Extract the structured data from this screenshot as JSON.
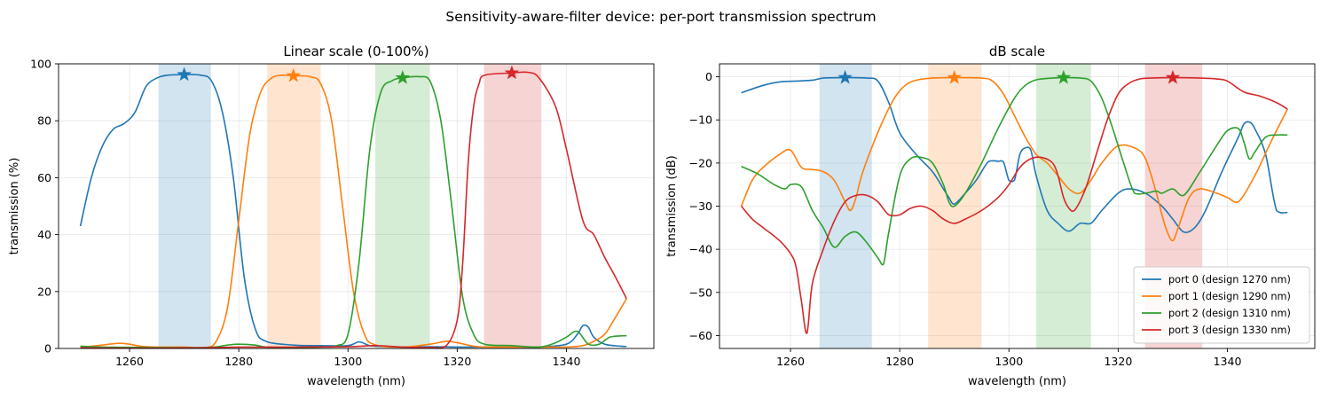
{
  "figure": {
    "suptitle": "Sensitivity-aware-filter device: per-port transmission spectrum"
  },
  "chart_data": [
    {
      "type": "line",
      "title": "Linear scale (0-100%)",
      "xlabel": "wavelength (nm)",
      "ylabel": "transmission (%)",
      "xlim": [
        1247,
        1356
      ],
      "ylim": [
        0,
        100
      ],
      "xticks": [
        1260,
        1280,
        1300,
        1320,
        1340
      ],
      "yticks": [
        0,
        20,
        40,
        60,
        80,
        100
      ],
      "grid": true,
      "bands": [
        {
          "x0": 1265.3,
          "x1": 1274.9,
          "color": "#1f77b4"
        },
        {
          "x0": 1285.2,
          "x1": 1295.0,
          "color": "#ff7f0e"
        },
        {
          "x0": 1305.0,
          "x1": 1315.0,
          "color": "#2ca02c"
        },
        {
          "x0": 1324.9,
          "x1": 1335.4,
          "color": "#d62728"
        }
      ],
      "markers": [
        {
          "x": 1270,
          "y": 96.2,
          "color": "#1f77b4"
        },
        {
          "x": 1290,
          "y": 95.8,
          "color": "#ff7f0e"
        },
        {
          "x": 1310,
          "y": 95.1,
          "color": "#2ca02c"
        },
        {
          "x": 1330,
          "y": 96.8,
          "color": "#d62728"
        }
      ],
      "series": [
        {
          "color": "#1f77b4",
          "x": [
            1251,
            1253,
            1255,
            1257,
            1259,
            1261,
            1263,
            1265,
            1267,
            1270,
            1273,
            1275,
            1277,
            1279,
            1281,
            1283,
            1285,
            1290,
            1295,
            1300,
            1302,
            1304,
            1306,
            1310,
            1315,
            1320,
            1325,
            1330,
            1335,
            1340,
            1342,
            1343,
            1344,
            1345,
            1347,
            1350,
            1351
          ],
          "y": [
            43,
            60,
            71,
            77,
            79,
            83,
            92,
            95,
            96,
            96.2,
            96,
            94,
            83,
            60,
            25,
            7,
            2.5,
            1.2,
            1.0,
            1.0,
            2.3,
            1.0,
            0.8,
            0.5,
            0.6,
            0.5,
            0.5,
            0.5,
            0.5,
            1.5,
            5,
            8,
            7.5,
            4,
            1.5,
            0.8,
            0.7
          ]
        },
        {
          "color": "#ff7f0e",
          "x": [
            1251,
            1255,
            1258,
            1260,
            1262,
            1265,
            1270,
            1274,
            1276,
            1278,
            1280,
            1282,
            1284,
            1286,
            1288,
            1290,
            1293,
            1295,
            1297,
            1299,
            1301,
            1303,
            1305,
            1310,
            1315,
            1318,
            1320,
            1323,
            1325,
            1330,
            1335,
            1340,
            1343,
            1345,
            1347,
            1349,
            1351
          ],
          "y": [
            0.4,
            1.2,
            1.8,
            1.5,
            0.8,
            0.5,
            0.5,
            0.3,
            3,
            15,
            45,
            75,
            90,
            95,
            96,
            95.8,
            95.5,
            93,
            80,
            50,
            20,
            5,
            1.3,
            0.5,
            1.5,
            2.5,
            2,
            0.8,
            0.5,
            0.5,
            0.5,
            0.5,
            1,
            2.5,
            5,
            11,
            17.5
          ]
        },
        {
          "color": "#2ca02c",
          "x": [
            1251,
            1255,
            1260,
            1265,
            1270,
            1275,
            1278,
            1280,
            1283,
            1285,
            1290,
            1295,
            1298,
            1300,
            1302,
            1304,
            1306,
            1308,
            1310,
            1313,
            1315,
            1317,
            1319,
            1321,
            1323,
            1325,
            1330,
            1335,
            1338,
            1340,
            1342,
            1344,
            1346,
            1348,
            1351
          ],
          "y": [
            0.8,
            0.5,
            0.4,
            0.3,
            0.3,
            0.4,
            1.2,
            1.5,
            1.2,
            0.5,
            0.3,
            0.5,
            1.0,
            5,
            30,
            70,
            90,
            94,
            95.1,
            95.5,
            94,
            80,
            50,
            18,
            5,
            1.5,
            1,
            0.5,
            2,
            4,
            6,
            1.5,
            1.5,
            4,
            4.5
          ]
        },
        {
          "color": "#d62728",
          "x": [
            1251,
            1260,
            1265,
            1270,
            1275,
            1280,
            1290,
            1300,
            1305,
            1310,
            1315,
            1318,
            1320,
            1321,
            1322,
            1323,
            1324,
            1325,
            1330,
            1333,
            1335,
            1338,
            1340,
            1343,
            1345,
            1347,
            1349,
            1351
          ],
          "y": [
            0.2,
            0.1,
            0.1,
            0.2,
            0.3,
            0.5,
            0.5,
            0.6,
            1.0,
            0.5,
            0.3,
            1.0,
            10,
            30,
            65,
            85,
            93,
            96,
            96.8,
            97,
            95,
            85,
            70,
            45,
            40,
            32,
            25,
            17.5
          ]
        }
      ]
    },
    {
      "type": "line",
      "title": "dB scale",
      "xlabel": "wavelength (nm)",
      "ylabel": "transmission (dB)",
      "xlim": [
        1247,
        1356
      ],
      "ylim": [
        -63,
        3
      ],
      "xticks": [
        1260,
        1280,
        1300,
        1320,
        1340
      ],
      "yticks": [
        0,
        -10,
        -20,
        -30,
        -40,
        -50,
        -60
      ],
      "grid": true,
      "legend_position": "lower-right",
      "bands": [
        {
          "x0": 1265.3,
          "x1": 1274.9,
          "color": "#1f77b4"
        },
        {
          "x0": 1285.2,
          "x1": 1295.0,
          "color": "#ff7f0e"
        },
        {
          "x0": 1305.0,
          "x1": 1315.0,
          "color": "#2ca02c"
        },
        {
          "x0": 1324.9,
          "x1": 1335.4,
          "color": "#d62728"
        }
      ],
      "markers": [
        {
          "x": 1270,
          "y": -0.2,
          "color": "#1f77b4"
        },
        {
          "x": 1290,
          "y": -0.2,
          "color": "#ff7f0e"
        },
        {
          "x": 1310,
          "y": -0.2,
          "color": "#2ca02c"
        },
        {
          "x": 1330,
          "y": -0.2,
          "color": "#d62728"
        }
      ],
      "series": [
        {
          "name": "port 0 (design 1270 nm)",
          "color": "#1f77b4",
          "x": [
            1251,
            1255,
            1258,
            1261,
            1264,
            1266,
            1270,
            1274,
            1276,
            1278,
            1280,
            1283,
            1286,
            1288,
            1289,
            1290,
            1292,
            1294,
            1296,
            1297,
            1298,
            1299,
            1300,
            1301,
            1302,
            1303,
            1304,
            1305,
            1307,
            1309,
            1311,
            1313,
            1315,
            1317,
            1320,
            1322,
            1325,
            1328,
            1330,
            1332,
            1334,
            1336,
            1339,
            1342,
            1343,
            1344,
            1345,
            1347,
            1349,
            1351
          ],
          "y": [
            -3.7,
            -2,
            -1.2,
            -1,
            -0.8,
            -0.3,
            -0.2,
            -0.3,
            -1,
            -6,
            -13,
            -18,
            -22,
            -26,
            -28,
            -29.5,
            -27,
            -24,
            -20,
            -19.5,
            -19.6,
            -19.8,
            -24,
            -24,
            -18,
            -16.5,
            -17,
            -23,
            -31,
            -34,
            -35.8,
            -34,
            -34,
            -31,
            -27,
            -26,
            -27,
            -30,
            -33,
            -36,
            -35,
            -31,
            -22,
            -14,
            -11,
            -10.5,
            -12,
            -18,
            -31,
            -31.5
          ]
        },
        {
          "name": "port 1 (design 1290 nm)",
          "color": "#ff7f0e",
          "x": [
            1251,
            1253,
            1255,
            1258,
            1260,
            1262,
            1264,
            1266,
            1268,
            1270,
            1271,
            1272,
            1273,
            1275,
            1277,
            1279,
            1281,
            1283,
            1286,
            1290,
            1295,
            1297,
            1299,
            1301,
            1303,
            1305,
            1307,
            1309,
            1311,
            1313,
            1315,
            1317,
            1320,
            1323,
            1325,
            1327,
            1328,
            1329,
            1330,
            1331,
            1333,
            1335,
            1338,
            1340,
            1342,
            1345,
            1348,
            1351
          ],
          "y": [
            -30,
            -24,
            -21,
            -18,
            -17,
            -21,
            -21.5,
            -22,
            -24,
            -29,
            -31,
            -28,
            -23,
            -16,
            -10,
            -5,
            -2,
            -0.8,
            -0.3,
            -0.2,
            -0.3,
            -1,
            -4,
            -9,
            -14,
            -18,
            -20,
            -23,
            -26,
            -27,
            -24,
            -20,
            -16,
            -16.5,
            -19,
            -27,
            -32,
            -36,
            -38,
            -35,
            -28,
            -26,
            -27,
            -28,
            -29,
            -23,
            -15,
            -7.5
          ]
        },
        {
          "name": "port 2 (design 1310 nm)",
          "color": "#2ca02c",
          "x": [
            1251,
            1254,
            1257,
            1259,
            1260,
            1262,
            1264,
            1266,
            1268,
            1270,
            1272,
            1274,
            1276,
            1277,
            1278,
            1280,
            1282,
            1284,
            1286,
            1288,
            1289,
            1290,
            1292,
            1295,
            1298,
            1301,
            1303,
            1305,
            1308,
            1310,
            1313,
            1315,
            1317,
            1319,
            1321,
            1323,
            1325,
            1327,
            1328,
            1330,
            1332,
            1335,
            1338,
            1340,
            1342,
            1343,
            1344,
            1345,
            1347,
            1349,
            1351
          ],
          "y": [
            -20.8,
            -22.5,
            -25,
            -26,
            -25,
            -25.5,
            -31,
            -35,
            -39.5,
            -37,
            -36,
            -38.5,
            -42,
            -43.5,
            -36,
            -23,
            -19,
            -18.7,
            -20,
            -25,
            -29,
            -30,
            -27,
            -20,
            -12,
            -5,
            -2,
            -0.7,
            -0.3,
            -0.2,
            -0.3,
            -1,
            -5,
            -12,
            -20,
            -27,
            -27,
            -26.5,
            -27,
            -26,
            -27.5,
            -22,
            -16,
            -12.5,
            -12,
            -15,
            -19,
            -17.5,
            -14,
            -13.5,
            -13.5
          ]
        },
        {
          "name": "port 3 (design 1330 nm)",
          "color": "#d62728",
          "x": [
            1251,
            1253,
            1255,
            1258,
            1260,
            1261,
            1262,
            1263,
            1264,
            1266,
            1268,
            1270,
            1272,
            1274,
            1276,
            1278,
            1280,
            1282,
            1284,
            1286,
            1288,
            1290,
            1292,
            1295,
            1298,
            1300,
            1302,
            1304,
            1306,
            1308,
            1309,
            1310,
            1311,
            1312,
            1314,
            1316,
            1318,
            1320,
            1322,
            1324,
            1326,
            1330,
            1335,
            1338,
            1340,
            1343,
            1346,
            1349,
            1351
          ],
          "y": [
            -30,
            -33,
            -35,
            -38,
            -41,
            -44,
            -52,
            -59.5,
            -48,
            -40,
            -33.5,
            -29,
            -27.5,
            -27.5,
            -29,
            -32,
            -32,
            -30.5,
            -30,
            -31,
            -33,
            -34,
            -33,
            -31,
            -28,
            -25,
            -21,
            -19,
            -18.7,
            -20,
            -23,
            -28,
            -30.5,
            -31,
            -26,
            -18,
            -10,
            -4,
            -1.5,
            -0.5,
            -0.3,
            -0.2,
            -0.3,
            -0.5,
            -1,
            -3.5,
            -4.5,
            -6,
            -7.5
          ]
        }
      ]
    }
  ]
}
